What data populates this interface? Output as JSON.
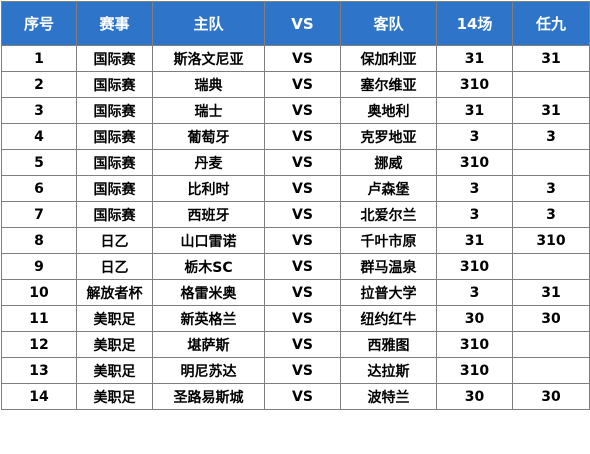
{
  "headers": [
    "序号",
    "赛事",
    "主队",
    "VS",
    "客队",
    "14场",
    "任九"
  ],
  "rows": [
    {
      "no": "1",
      "event": "国际赛",
      "home": "斯洛文尼亚",
      "vs": "VS",
      "away": "保加利亚",
      "p14": "31",
      "r9": "31"
    },
    {
      "no": "2",
      "event": "国际赛",
      "home": "瑞典",
      "vs": "VS",
      "away": "塞尔维亚",
      "p14": "310",
      "r9": ""
    },
    {
      "no": "3",
      "event": "国际赛",
      "home": "瑞士",
      "vs": "VS",
      "away": "奥地利",
      "p14": "31",
      "r9": "31"
    },
    {
      "no": "4",
      "event": "国际赛",
      "home": "葡萄牙",
      "vs": "VS",
      "away": "克罗地亚",
      "p14": "3",
      "r9": "3"
    },
    {
      "no": "5",
      "event": "国际赛",
      "home": "丹麦",
      "vs": "VS",
      "away": "挪威",
      "p14": "310",
      "r9": ""
    },
    {
      "no": "6",
      "event": "国际赛",
      "home": "比利时",
      "vs": "VS",
      "away": "卢森堡",
      "p14": "3",
      "r9": "3"
    },
    {
      "no": "7",
      "event": "国际赛",
      "home": "西班牙",
      "vs": "VS",
      "away": "北爱尔兰",
      "p14": "3",
      "r9": "3"
    },
    {
      "no": "8",
      "event": "日乙",
      "home": "山口雷诺",
      "vs": "VS",
      "away": "千叶市原",
      "p14": "31",
      "r9": "310"
    },
    {
      "no": "9",
      "event": "日乙",
      "home": "栃木SC",
      "vs": "VS",
      "away": "群马温泉",
      "p14": "310",
      "r9": ""
    },
    {
      "no": "10",
      "event": "解放者杯",
      "home": "格雷米奥",
      "vs": "VS",
      "away": "拉普大学",
      "p14": "3",
      "r9": "31"
    },
    {
      "no": "11",
      "event": "美职足",
      "home": "新英格兰",
      "vs": "VS",
      "away": "纽约红牛",
      "p14": "30",
      "r9": "30"
    },
    {
      "no": "12",
      "event": "美职足",
      "home": "堪萨斯",
      "vs": "VS",
      "away": "西雅图",
      "p14": "310",
      "r9": ""
    },
    {
      "no": "13",
      "event": "美职足",
      "home": "明尼苏达",
      "vs": "VS",
      "away": "达拉斯",
      "p14": "310",
      "r9": ""
    },
    {
      "no": "14",
      "event": "美职足",
      "home": "圣路易斯城",
      "vs": "VS",
      "away": "波特兰",
      "p14": "30",
      "r9": "30"
    }
  ],
  "colors": {
    "header_bg": "#2e75c9",
    "header_text": "#ffffff",
    "grid": "#7f7f7f"
  }
}
